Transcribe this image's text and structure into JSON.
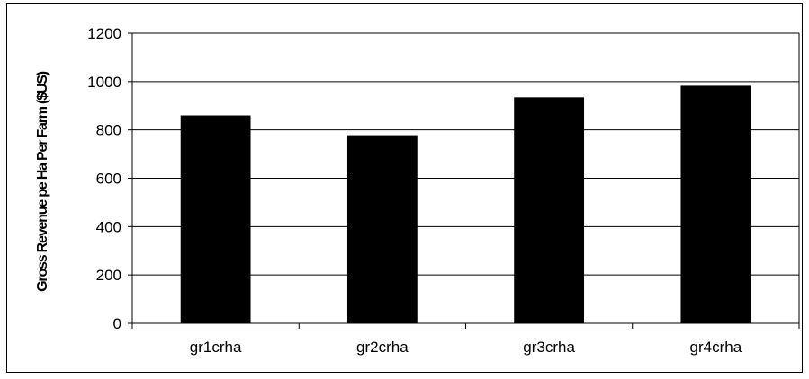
{
  "chart_data": {
    "type": "bar",
    "title": "",
    "xlabel": "",
    "ylabel": "Gross Revenue pe Ha Per Farm ($US)",
    "categories": [
      "gr1crha",
      "gr2crha",
      "gr3crha",
      "gr4crha"
    ],
    "series": [
      {
        "values": [
          860,
          778,
          935,
          983
        ]
      }
    ],
    "ylim": [
      0,
      1200
    ],
    "yticks": [
      0,
      200,
      400,
      600,
      800,
      1000,
      1200
    ],
    "grid": true,
    "legend": "none",
    "colors": {
      "bar": "#000000",
      "grid": "#000000",
      "background": "#ffffff"
    }
  }
}
